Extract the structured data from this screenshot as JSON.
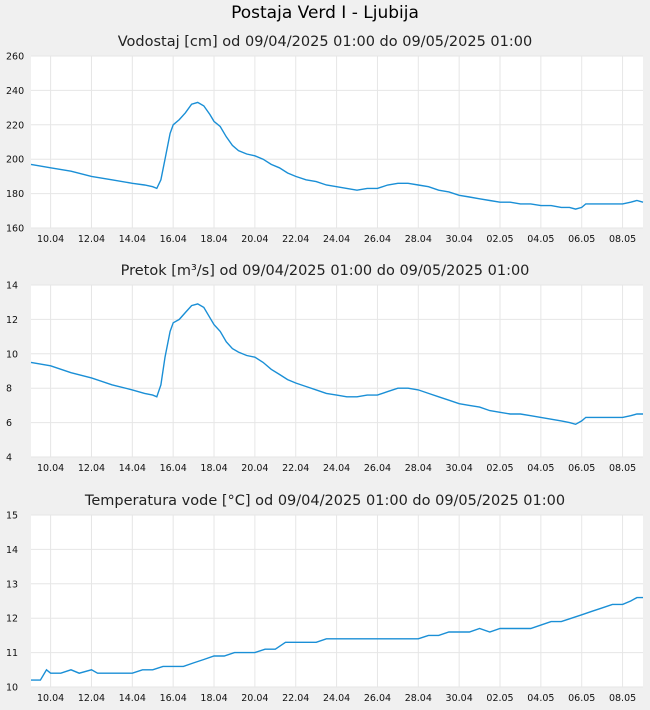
{
  "page": {
    "title": "Postaja Verd I - Ljubija"
  },
  "chart_data": [
    {
      "type": "line",
      "title": "Vodostaj [cm] od 09/04/2025 01:00 do 09/05/2025 01:00",
      "x_ticks": [
        "10.04",
        "12.04",
        "14.04",
        "16.04",
        "18.04",
        "20.04",
        "22.04",
        "24.04",
        "26.04",
        "28.04",
        "30.04",
        "02.05",
        "04.05",
        "06.05",
        "08.05"
      ],
      "y_ticks": [
        "160",
        "180",
        "200",
        "220",
        "240",
        "260"
      ],
      "ylim": [
        160,
        260
      ],
      "xlim": [
        9.04,
        39.0
      ],
      "grid": true,
      "color": "#1a8fd6",
      "series": [
        {
          "points": [
            [
              9.04,
              197
            ],
            [
              10.0,
              195
            ],
            [
              11.0,
              193
            ],
            [
              12.0,
              190
            ],
            [
              13.0,
              188
            ],
            [
              14.0,
              186
            ],
            [
              14.6,
              185
            ],
            [
              15.0,
              184
            ],
            [
              15.2,
              183
            ],
            [
              15.4,
              188
            ],
            [
              15.6,
              200
            ],
            [
              15.85,
              215
            ],
            [
              16.0,
              220
            ],
            [
              16.3,
              223
            ],
            [
              16.6,
              227
            ],
            [
              16.9,
              232
            ],
            [
              17.2,
              233
            ],
            [
              17.5,
              231
            ],
            [
              17.8,
              226
            ],
            [
              18.0,
              222
            ],
            [
              18.3,
              219
            ],
            [
              18.6,
              213
            ],
            [
              18.9,
              208
            ],
            [
              19.2,
              205
            ],
            [
              19.6,
              203
            ],
            [
              20.0,
              202
            ],
            [
              20.4,
              200
            ],
            [
              20.8,
              197
            ],
            [
              21.2,
              195
            ],
            [
              21.6,
              192
            ],
            [
              22.0,
              190
            ],
            [
              22.5,
              188
            ],
            [
              23.0,
              187
            ],
            [
              23.5,
              185
            ],
            [
              24.0,
              184
            ],
            [
              24.5,
              183
            ],
            [
              25.0,
              182
            ],
            [
              25.5,
              183
            ],
            [
              26.0,
              183
            ],
            [
              26.5,
              185
            ],
            [
              27.0,
              186
            ],
            [
              27.5,
              186
            ],
            [
              28.0,
              185
            ],
            [
              28.5,
              184
            ],
            [
              29.0,
              182
            ],
            [
              29.5,
              181
            ],
            [
              30.0,
              179
            ],
            [
              30.5,
              178
            ],
            [
              31.0,
              177
            ],
            [
              31.5,
              176
            ],
            [
              32.0,
              175
            ],
            [
              32.5,
              175
            ],
            [
              33.0,
              174
            ],
            [
              33.5,
              174
            ],
            [
              34.0,
              173
            ],
            [
              34.5,
              173
            ],
            [
              35.0,
              172
            ],
            [
              35.4,
              172
            ],
            [
              35.7,
              171
            ],
            [
              36.0,
              172
            ],
            [
              36.2,
              174
            ],
            [
              36.6,
              174
            ],
            [
              37.0,
              174
            ],
            [
              37.5,
              174
            ],
            [
              38.0,
              174
            ],
            [
              38.4,
              175
            ],
            [
              38.7,
              176
            ],
            [
              39.0,
              175
            ]
          ]
        }
      ]
    },
    {
      "type": "line",
      "title": "Pretok [m³/s] od 09/04/2025 01:00 do 09/05/2025 01:00",
      "x_ticks": [
        "10.04",
        "12.04",
        "14.04",
        "16.04",
        "18.04",
        "20.04",
        "22.04",
        "24.04",
        "26.04",
        "28.04",
        "30.04",
        "02.05",
        "04.05",
        "06.05",
        "08.05"
      ],
      "y_ticks": [
        "4",
        "6",
        "8",
        "10",
        "12",
        "14"
      ],
      "ylim": [
        4,
        14
      ],
      "xlim": [
        9.04,
        39.0
      ],
      "grid": true,
      "color": "#1a8fd6",
      "series": [
        {
          "points": [
            [
              9.04,
              9.5
            ],
            [
              10.0,
              9.3
            ],
            [
              11.0,
              8.9
            ],
            [
              12.0,
              8.6
            ],
            [
              13.0,
              8.2
            ],
            [
              14.0,
              7.9
            ],
            [
              14.6,
              7.7
            ],
            [
              15.0,
              7.6
            ],
            [
              15.2,
              7.5
            ],
            [
              15.4,
              8.2
            ],
            [
              15.6,
              9.8
            ],
            [
              15.85,
              11.3
            ],
            [
              16.0,
              11.8
            ],
            [
              16.3,
              12.0
            ],
            [
              16.6,
              12.4
            ],
            [
              16.9,
              12.8
            ],
            [
              17.2,
              12.9
            ],
            [
              17.5,
              12.7
            ],
            [
              17.8,
              12.1
            ],
            [
              18.0,
              11.7
            ],
            [
              18.3,
              11.3
            ],
            [
              18.6,
              10.7
            ],
            [
              18.9,
              10.3
            ],
            [
              19.2,
              10.1
            ],
            [
              19.6,
              9.9
            ],
            [
              20.0,
              9.8
            ],
            [
              20.4,
              9.5
            ],
            [
              20.8,
              9.1
            ],
            [
              21.2,
              8.8
            ],
            [
              21.6,
              8.5
            ],
            [
              22.0,
              8.3
            ],
            [
              22.5,
              8.1
            ],
            [
              23.0,
              7.9
            ],
            [
              23.5,
              7.7
            ],
            [
              24.0,
              7.6
            ],
            [
              24.5,
              7.5
            ],
            [
              25.0,
              7.5
            ],
            [
              25.5,
              7.6
            ],
            [
              26.0,
              7.6
            ],
            [
              26.5,
              7.8
            ],
            [
              27.0,
              8.0
            ],
            [
              27.5,
              8.0
            ],
            [
              28.0,
              7.9
            ],
            [
              28.5,
              7.7
            ],
            [
              29.0,
              7.5
            ],
            [
              29.5,
              7.3
            ],
            [
              30.0,
              7.1
            ],
            [
              30.5,
              7.0
            ],
            [
              31.0,
              6.9
            ],
            [
              31.5,
              6.7
            ],
            [
              32.0,
              6.6
            ],
            [
              32.5,
              6.5
            ],
            [
              33.0,
              6.5
            ],
            [
              33.5,
              6.4
            ],
            [
              34.0,
              6.3
            ],
            [
              34.5,
              6.2
            ],
            [
              35.0,
              6.1
            ],
            [
              35.4,
              6.0
            ],
            [
              35.7,
              5.9
            ],
            [
              36.0,
              6.1
            ],
            [
              36.2,
              6.3
            ],
            [
              36.6,
              6.3
            ],
            [
              37.0,
              6.3
            ],
            [
              37.5,
              6.3
            ],
            [
              38.0,
              6.3
            ],
            [
              38.4,
              6.4
            ],
            [
              38.7,
              6.5
            ],
            [
              39.0,
              6.5
            ]
          ]
        }
      ]
    },
    {
      "type": "line",
      "title": "Temperatura vode [°C] od 09/04/2025 01:00 do 09/05/2025 01:00",
      "x_ticks": [
        "10.04",
        "12.04",
        "14.04",
        "16.04",
        "18.04",
        "20.04",
        "22.04",
        "24.04",
        "26.04",
        "28.04",
        "30.04",
        "02.05",
        "04.05",
        "06.05",
        "08.05"
      ],
      "y_ticks": [
        "10",
        "11",
        "12",
        "13",
        "14",
        "15"
      ],
      "ylim": [
        10,
        15
      ],
      "xlim": [
        9.04,
        39.0
      ],
      "grid": true,
      "color": "#1a8fd6",
      "series": [
        {
          "points": [
            [
              9.04,
              10.2
            ],
            [
              9.5,
              10.2
            ],
            [
              9.8,
              10.5
            ],
            [
              10.0,
              10.4
            ],
            [
              10.5,
              10.4
            ],
            [
              11.0,
              10.5
            ],
            [
              11.4,
              10.4
            ],
            [
              12.0,
              10.5
            ],
            [
              12.3,
              10.4
            ],
            [
              13.0,
              10.4
            ],
            [
              14.0,
              10.4
            ],
            [
              14.5,
              10.5
            ],
            [
              15.0,
              10.5
            ],
            [
              15.5,
              10.6
            ],
            [
              16.0,
              10.6
            ],
            [
              16.5,
              10.6
            ],
            [
              17.0,
              10.7
            ],
            [
              17.5,
              10.8
            ],
            [
              18.0,
              10.9
            ],
            [
              18.5,
              10.9
            ],
            [
              19.0,
              11.0
            ],
            [
              19.5,
              11.0
            ],
            [
              20.0,
              11.0
            ],
            [
              20.5,
              11.1
            ],
            [
              21.0,
              11.1
            ],
            [
              21.5,
              11.3
            ],
            [
              22.0,
              11.3
            ],
            [
              22.5,
              11.3
            ],
            [
              23.0,
              11.3
            ],
            [
              23.5,
              11.4
            ],
            [
              24.0,
              11.4
            ],
            [
              24.5,
              11.4
            ],
            [
              25.0,
              11.4
            ],
            [
              25.5,
              11.4
            ],
            [
              26.0,
              11.4
            ],
            [
              26.5,
              11.4
            ],
            [
              27.0,
              11.4
            ],
            [
              27.5,
              11.4
            ],
            [
              28.0,
              11.4
            ],
            [
              28.5,
              11.5
            ],
            [
              29.0,
              11.5
            ],
            [
              29.5,
              11.6
            ],
            [
              30.0,
              11.6
            ],
            [
              30.5,
              11.6
            ],
            [
              31.0,
              11.7
            ],
            [
              31.5,
              11.6
            ],
            [
              32.0,
              11.7
            ],
            [
              32.5,
              11.7
            ],
            [
              33.0,
              11.7
            ],
            [
              33.5,
              11.7
            ],
            [
              34.0,
              11.8
            ],
            [
              34.5,
              11.9
            ],
            [
              35.0,
              11.9
            ],
            [
              35.5,
              12.0
            ],
            [
              36.0,
              12.1
            ],
            [
              36.5,
              12.2
            ],
            [
              37.0,
              12.3
            ],
            [
              37.5,
              12.4
            ],
            [
              38.0,
              12.4
            ],
            [
              38.4,
              12.5
            ],
            [
              38.7,
              12.6
            ],
            [
              39.0,
              12.6
            ]
          ]
        }
      ]
    }
  ]
}
